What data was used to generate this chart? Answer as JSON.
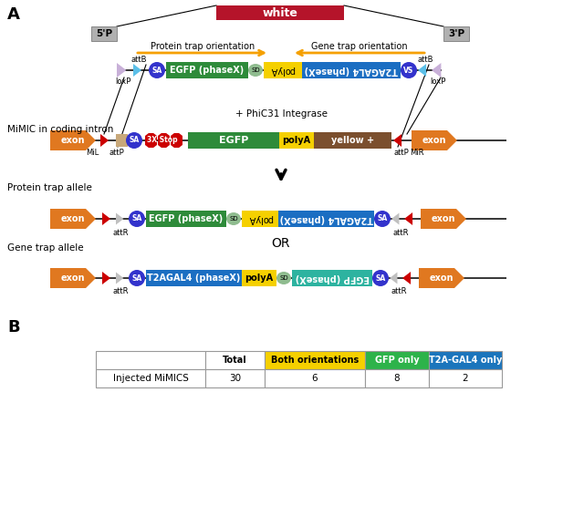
{
  "bg_color": "#ffffff",
  "white_label": "white",
  "white_color": "#b5142a",
  "prime5_label": "5'P",
  "prime3_label": "3'P",
  "protein_trap_label": "Protein trap orientation",
  "gene_trap_label": "Gene trap orientation",
  "mimicTitle": "MiMIC in coding intron",
  "protein_allele_title": "Protein trap allele",
  "gene_allele_title": "Gene trap allele",
  "integrase_label": "+ PhiC31 Integrase",
  "OR_label": "OR",
  "table_headers": [
    "",
    "Total",
    "Both orientations",
    "GFP only",
    "T2A-GAL4 only"
  ],
  "table_row": [
    "Injected MiMICS",
    "30",
    "6",
    "8",
    "2"
  ],
  "col_header_colors": [
    "#ffffff",
    "#ffffff",
    "#f5d000",
    "#2db34a",
    "#1b75bc"
  ],
  "col_text_colors": [
    "#000000",
    "#000000",
    "#000000",
    "#ffffff",
    "#ffffff"
  ],
  "attB_label": "attB",
  "attP_label": "attP",
  "attR_label": "attR",
  "loxP_label": "loxP",
  "MiL_label": "MiL",
  "MiR_label": "MiR",
  "exon_color": "#e07820",
  "egfp_color": "#2e8b3a",
  "egfp_rev_color": "#2db3a0",
  "t2agal4_color": "#1b6ec2",
  "polya_color": "#f5d000",
  "yellow_color": "#7b4f2e",
  "sa_color": "#3333cc",
  "stop_color": "#cc0000",
  "arrow_orange": "#f5a000",
  "loxp_tri_color": "#c8b0d8",
  "attB_tri_color": "#5bbfe8",
  "gray_tri_color": "#c0c0c0",
  "red_tri_color": "#cc0000",
  "tan_color": "#c8a87a",
  "sd_color": "#8fbc8f"
}
